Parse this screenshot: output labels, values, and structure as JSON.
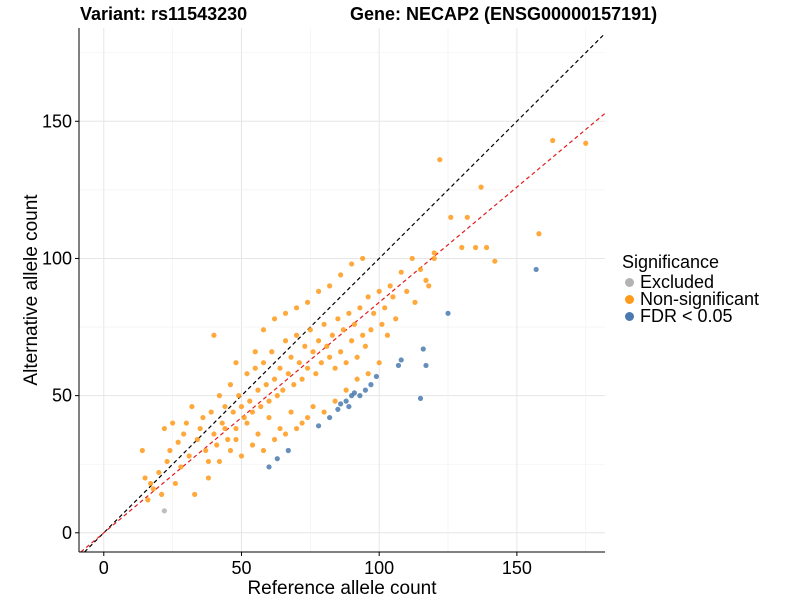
{
  "title_left": "Variant: rs11543230",
  "title_right": "Gene: NECAP2 (ENSG00000157191)",
  "chart_data": {
    "type": "scatter",
    "xlabel": "Reference allele count",
    "ylabel": "Alternative allele count",
    "xlim": [
      -9,
      182
    ],
    "ylim": [
      -7,
      184
    ],
    "xticks": [
      0,
      50,
      100,
      150
    ],
    "yticks": [
      0,
      50,
      100,
      150
    ],
    "grid": true,
    "reference_lines": [
      {
        "style": "dashed",
        "color": "#000000",
        "intercept": 0,
        "slope": 1.0
      },
      {
        "style": "dashed",
        "color": "#e41a1c",
        "intercept": 0,
        "slope": 0.84
      }
    ],
    "legend": {
      "title": "Significance",
      "placement": "right",
      "entries": [
        {
          "label": "Excluded",
          "color": "#b3b3b3"
        },
        {
          "label": "Non-significant",
          "color": "#ff9a1a"
        },
        {
          "label": "FDR < 0.05",
          "color": "#4a7aaf"
        }
      ]
    },
    "series": [
      {
        "name": "Excluded",
        "color": "#b3b3b3",
        "points": [
          [
            22,
            8
          ]
        ]
      },
      {
        "name": "Non-significant",
        "color": "#ff9a1a",
        "points": [
          [
            14,
            30
          ],
          [
            15,
            20
          ],
          [
            16,
            12
          ],
          [
            17,
            18
          ],
          [
            18,
            16
          ],
          [
            20,
            22
          ],
          [
            21,
            14
          ],
          [
            22,
            38
          ],
          [
            23,
            26
          ],
          [
            24,
            30
          ],
          [
            25,
            40
          ],
          [
            26,
            18
          ],
          [
            27,
            33
          ],
          [
            28,
            24
          ],
          [
            29,
            36
          ],
          [
            30,
            40
          ],
          [
            31,
            28
          ],
          [
            32,
            46
          ],
          [
            33,
            14
          ],
          [
            34,
            34
          ],
          [
            35,
            38
          ],
          [
            36,
            42
          ],
          [
            37,
            30
          ],
          [
            38,
            26
          ],
          [
            39,
            44
          ],
          [
            40,
            36
          ],
          [
            41,
            32
          ],
          [
            42,
            50
          ],
          [
            43,
            40
          ],
          [
            44,
            46
          ],
          [
            45,
            34
          ],
          [
            46,
            54
          ],
          [
            47,
            44
          ],
          [
            48,
            38
          ],
          [
            49,
            50
          ],
          [
            50,
            46
          ],
          [
            51,
            42
          ],
          [
            52,
            58
          ],
          [
            53,
            48
          ],
          [
            54,
            44
          ],
          [
            55,
            60
          ],
          [
            56,
            52
          ],
          [
            57,
            46
          ],
          [
            58,
            62
          ],
          [
            59,
            54
          ],
          [
            60,
            48
          ],
          [
            61,
            66
          ],
          [
            62,
            56
          ],
          [
            63,
            50
          ],
          [
            64,
            60
          ],
          [
            65,
            52
          ],
          [
            66,
            70
          ],
          [
            67,
            58
          ],
          [
            68,
            64
          ],
          [
            69,
            54
          ],
          [
            70,
            72
          ],
          [
            71,
            62
          ],
          [
            72,
            56
          ],
          [
            73,
            68
          ],
          [
            74,
            60
          ],
          [
            75,
            74
          ],
          [
            76,
            66
          ],
          [
            77,
            58
          ],
          [
            78,
            70
          ],
          [
            79,
            62
          ],
          [
            80,
            76
          ],
          [
            81,
            68
          ],
          [
            82,
            64
          ],
          [
            83,
            72
          ],
          [
            84,
            60
          ],
          [
            85,
            78
          ],
          [
            86,
            66
          ],
          [
            87,
            74
          ],
          [
            88,
            62
          ],
          [
            89,
            80
          ],
          [
            90,
            70
          ],
          [
            91,
            76
          ],
          [
            92,
            64
          ],
          [
            93,
            82
          ],
          [
            94,
            72
          ],
          [
            95,
            68
          ],
          [
            96,
            86
          ],
          [
            97,
            74
          ],
          [
            98,
            80
          ],
          [
            100,
            88
          ],
          [
            101,
            76
          ],
          [
            102,
            82
          ],
          [
            103,
            72
          ],
          [
            104,
            90
          ],
          [
            105,
            86
          ],
          [
            106,
            78
          ],
          [
            108,
            95
          ],
          [
            110,
            88
          ],
          [
            112,
            100
          ],
          [
            113,
            84
          ],
          [
            115,
            96
          ],
          [
            117,
            92
          ],
          [
            120,
            102
          ],
          [
            122,
            136
          ],
          [
            126,
            115
          ],
          [
            130,
            104
          ],
          [
            132,
            115
          ],
          [
            135,
            104
          ],
          [
            137,
            126
          ],
          [
            139,
            104
          ],
          [
            142,
            99
          ],
          [
            158,
            109
          ],
          [
            163,
            143
          ],
          [
            175,
            142
          ],
          [
            120,
            100
          ],
          [
            118,
            90
          ],
          [
            40,
            72
          ],
          [
            48,
            62
          ],
          [
            55,
            66
          ],
          [
            58,
            74
          ],
          [
            62,
            78
          ],
          [
            66,
            80
          ],
          [
            70,
            82
          ],
          [
            74,
            84
          ],
          [
            78,
            88
          ],
          [
            82,
            90
          ],
          [
            86,
            94
          ],
          [
            90,
            98
          ],
          [
            94,
            100
          ],
          [
            44,
            38
          ],
          [
            48,
            34
          ],
          [
            52,
            40
          ],
          [
            56,
            36
          ],
          [
            60,
            42
          ],
          [
            64,
            38
          ],
          [
            68,
            44
          ],
          [
            72,
            40
          ],
          [
            76,
            46
          ],
          [
            80,
            44
          ],
          [
            84,
            48
          ],
          [
            88,
            52
          ],
          [
            92,
            56
          ],
          [
            96,
            58
          ],
          [
            100,
            62
          ],
          [
            38,
            20
          ],
          [
            42,
            26
          ],
          [
            46,
            30
          ],
          [
            50,
            28
          ],
          [
            54,
            32
          ],
          [
            58,
            30
          ],
          [
            62,
            34
          ],
          [
            66,
            36
          ],
          [
            70,
            38
          ],
          [
            74,
            42
          ]
        ]
      },
      {
        "name": "FDR < 0.05",
        "color": "#4a7aaf",
        "points": [
          [
            60,
            24
          ],
          [
            63,
            27
          ],
          [
            67,
            30
          ],
          [
            78,
            39
          ],
          [
            82,
            42
          ],
          [
            85,
            45
          ],
          [
            86,
            47
          ],
          [
            88,
            48
          ],
          [
            89,
            46
          ],
          [
            90,
            50
          ],
          [
            91,
            51
          ],
          [
            93,
            50
          ],
          [
            95,
            52
          ],
          [
            97,
            54
          ],
          [
            99,
            57
          ],
          [
            107,
            61
          ],
          [
            108,
            63
          ],
          [
            115,
            49
          ],
          [
            116,
            67
          ],
          [
            117,
            61
          ],
          [
            125,
            80
          ],
          [
            157,
            96
          ]
        ]
      }
    ]
  }
}
